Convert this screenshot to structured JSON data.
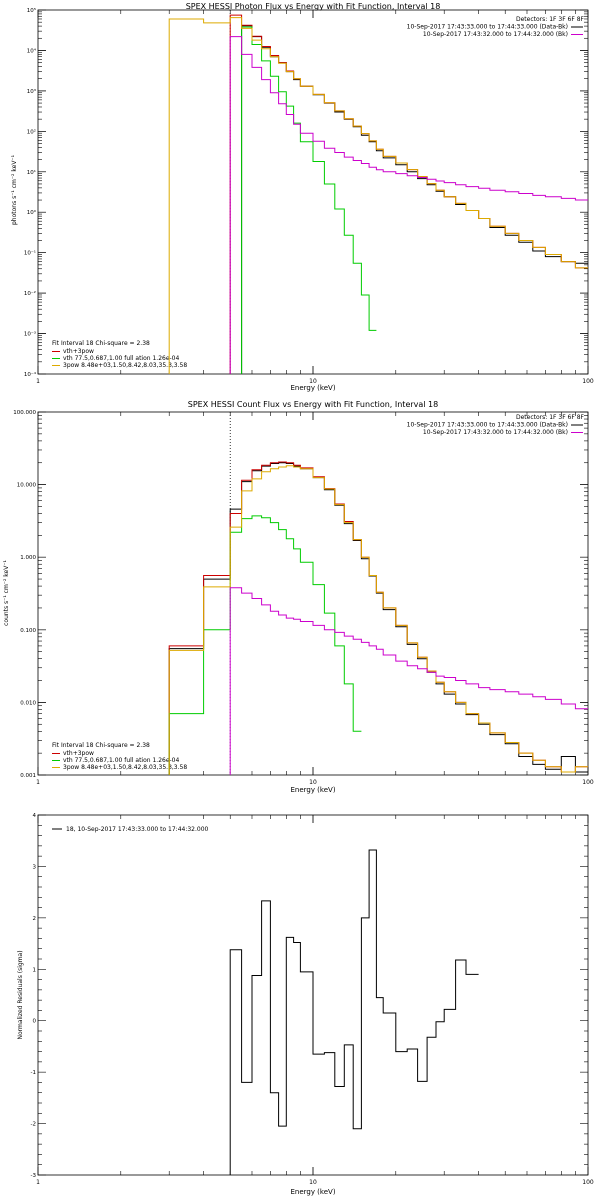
{
  "colors": {
    "data": "#000000",
    "model_total": "#cc0000",
    "vth": "#00cc00",
    "3pow": "#ddaa00",
    "background": "#cc00cc",
    "axes": "#000000"
  },
  "chart_data": [
    {
      "type": "line",
      "scale": "log-log",
      "title": "SPEX HESSI Photon Flux vs Energy with Fit Function, Interval 18",
      "xlabel": "Energy (keV)",
      "ylabel": "photons s⁻¹ cm⁻² keV⁻¹",
      "xlim": [
        1,
        100
      ],
      "ylim": [
        0.0001,
        100000
      ],
      "x_ticks": [
        {
          "v": 1,
          "label": "1"
        },
        {
          "v": 10,
          "label": "10"
        },
        {
          "v": 100,
          "label": "100"
        }
      ],
      "y_ticks": [
        {
          "v": 100000,
          "label": "10⁵"
        },
        {
          "v": 10000,
          "label": "10⁴"
        },
        {
          "v": 1000,
          "label": "10³"
        },
        {
          "v": 100,
          "label": "10²"
        },
        {
          "v": 10,
          "label": "10¹"
        },
        {
          "v": 1,
          "label": "10⁰"
        },
        {
          "v": 0.1,
          "label": "10⁻¹"
        },
        {
          "v": 0.01,
          "label": "10⁻²"
        },
        {
          "v": 0.001,
          "label": "10⁻³"
        },
        {
          "v": 0.0001,
          "label": "10⁻⁴"
        }
      ],
      "vline_x": 5.0,
      "header": {
        "detectors": "Detectors: 1F 3F 6F 8F",
        "legend": [
          {
            "text": "10-Sep-2017 17:43:33.000 to 17:44:33.000 (Data-Bk)",
            "color_key": "data"
          },
          {
            "text": "10-Sep-2017 17:43:32.000 to 17:44:32.000 (Bk)",
            "color_key": "background"
          }
        ]
      },
      "fit_legend": {
        "title": "Fit Interval 18   Chi-square = 2.38",
        "items": [
          {
            "text": "vth+3pow",
            "color_key": "model_total"
          },
          {
            "text": "vth 77.5,0.687,1.00   full ation 1.26e-04",
            "color_key": "vth"
          },
          {
            "text": "3pow 8.48e+03,1.50,8.42,8.03,35.3,3.58",
            "color_key": "3pow"
          }
        ]
      },
      "edges": [
        3,
        4,
        5,
        5.5,
        6,
        6.5,
        7,
        7.5,
        8,
        8.5,
        9,
        10,
        11,
        12,
        13,
        14,
        15,
        16,
        17,
        18,
        20,
        22,
        24,
        26,
        28,
        30,
        33,
        36,
        40,
        44,
        50,
        56,
        63,
        70,
        80,
        90,
        100
      ],
      "series": [
        {
          "name": "Data-Bk",
          "color_key": "data",
          "start_index": 3,
          "values": [
            41000,
            22000,
            12000,
            7000,
            5000,
            3000,
            1900,
            1300,
            800,
            500,
            300,
            200,
            130,
            80,
            55,
            33,
            22,
            15,
            10,
            6.8,
            4.8,
            3.3,
            2.4,
            1.55,
            1.1,
            0.7,
            0.42,
            0.27,
            0.18,
            0.11,
            0.08,
            0.06,
            0.055
          ]
        },
        {
          "name": "vth+3pow",
          "color_key": "model_total",
          "start_index": 2,
          "values": [
            75000,
            42000,
            22500,
            12500,
            7500,
            5000,
            3100,
            2000,
            1300,
            820,
            510,
            320,
            205,
            135,
            88,
            58,
            36,
            24,
            16.5,
            11.3,
            7.6,
            5.1,
            3.5,
            2.4,
            1.65,
            1.1,
            0.7,
            0.45,
            0.3,
            0.2,
            0.135,
            0.09,
            0.06,
            0.042
          ]
        },
        {
          "name": "vth",
          "color_key": "vth",
          "start_index": 3,
          "values": [
            38000,
            14000,
            5500,
            2300,
            950,
            420,
            160,
            55,
            18,
            5,
            1.2,
            0.27,
            0.055,
            0.009,
            0.0012
          ]
        },
        {
          "name": "3pow",
          "color_key": "3pow",
          "start_index": 0,
          "values": [
            60000,
            48000,
            65000,
            35000,
            18000,
            11000,
            7000,
            4800,
            3000,
            2000,
            1300,
            820,
            510,
            320,
            205,
            135,
            88,
            58,
            36,
            24,
            16.5,
            11.3,
            7.6,
            5.1,
            3.5,
            2.4,
            1.65,
            1.1,
            0.7,
            0.45,
            0.3,
            0.2,
            0.135,
            0.09,
            0.06,
            0.042
          ]
        },
        {
          "name": "Bk",
          "color_key": "background",
          "start_index": 2,
          "values": [
            22000,
            8000,
            3800,
            1900,
            900,
            480,
            260,
            150,
            90,
            57,
            38,
            30,
            23,
            19,
            16,
            13,
            11.2,
            10,
            9,
            8,
            7.2,
            6.5,
            5.9,
            5.4,
            4.8,
            4.3,
            3.9,
            3.5,
            3.2,
            2.9,
            2.6,
            2.4,
            2.2,
            2.0
          ]
        }
      ]
    },
    {
      "type": "line",
      "scale": "log-log",
      "title": "SPEX HESSI Count Flux vs Energy with Fit Function, Interval 18",
      "xlabel": "Energy (keV)",
      "ylabel": "counts s⁻¹ cm⁻² keV⁻¹",
      "xlim": [
        1,
        100
      ],
      "ylim": [
        0.001,
        100
      ],
      "x_ticks": [
        {
          "v": 1,
          "label": "1"
        },
        {
          "v": 10,
          "label": "10"
        },
        {
          "v": 100,
          "label": "100"
        }
      ],
      "y_ticks": [
        {
          "v": 100,
          "label": "100.000"
        },
        {
          "v": 10,
          "label": "10.000"
        },
        {
          "v": 1,
          "label": "1.000"
        },
        {
          "v": 0.1,
          "label": "0.100"
        },
        {
          "v": 0.01,
          "label": "0.010"
        },
        {
          "v": 0.001,
          "label": "0.001"
        }
      ],
      "vline_x": 5.0,
      "header": {
        "detectors": "Detectors: 1F 3F 6F 8F",
        "legend": [
          {
            "text": "10-Sep-2017 17:43:33.000 to 17:44:33.000 (Data-Bk)",
            "color_key": "data"
          },
          {
            "text": "10-Sep-2017 17:43:32.000 to 17:44:32.000 (Bk)",
            "color_key": "background"
          }
        ]
      },
      "fit_legend": {
        "title": "Fit Interval 18   Chi-square = 2.38",
        "items": [
          {
            "text": "vth+3pow",
            "color_key": "model_total"
          },
          {
            "text": "vth 77.5,0.687,1.00   full ation 1.26e-04",
            "color_key": "vth"
          },
          {
            "text": "3pow 8.48e+03,1.50,8.42,8.03,35.3,3.58",
            "color_key": "3pow"
          }
        ]
      },
      "edges": [
        3,
        4,
        5,
        5.5,
        6,
        6.5,
        7,
        7.5,
        8,
        8.5,
        9,
        10,
        11,
        12,
        13,
        14,
        15,
        16,
        17,
        18,
        20,
        22,
        24,
        26,
        28,
        30,
        33,
        36,
        40,
        44,
        50,
        56,
        63,
        70,
        80,
        90,
        100
      ],
      "series": [
        {
          "name": "Data-Bk",
          "color_key": "data",
          "start_index": 0,
          "values": [
            0.055,
            0.5,
            4.6,
            11,
            15.5,
            18,
            19.5,
            20,
            19.5,
            18,
            16.5,
            12.5,
            8.5,
            5.2,
            2.9,
            1.7,
            0.95,
            0.55,
            0.32,
            0.19,
            0.11,
            0.063,
            0.04,
            0.026,
            0.018,
            0.013,
            0.0095,
            0.0068,
            0.005,
            0.0036,
            0.0027,
            0.0018,
            0.0014,
            0.0012,
            0.0018,
            0.0011
          ]
        },
        {
          "name": "vth+3pow",
          "color_key": "model_total",
          "start_index": 0,
          "values": [
            0.06,
            0.56,
            4.0,
            11.5,
            16,
            18.5,
            20,
            20.5,
            20,
            18.5,
            17,
            12.8,
            8.8,
            5.4,
            3.1,
            1.75,
            1.0,
            0.56,
            0.33,
            0.2,
            0.115,
            0.066,
            0.042,
            0.027,
            0.019,
            0.014,
            0.01,
            0.007,
            0.0052,
            0.0038,
            0.0028,
            0.002,
            0.0016,
            0.0013,
            0.0011,
            0.0013
          ]
        },
        {
          "name": "vth",
          "color_key": "vth",
          "start_index": 0,
          "values": [
            0.007,
            0.1,
            2.2,
            3.4,
            3.7,
            3.5,
            3.0,
            2.4,
            1.8,
            1.3,
            0.85,
            0.42,
            0.17,
            0.06,
            0.018,
            0.004
          ]
        },
        {
          "name": "3pow",
          "color_key": "3pow",
          "start_index": 0,
          "values": [
            0.052,
            0.39,
            2.6,
            8.2,
            12,
            15,
            16.5,
            17.5,
            18.2,
            17.5,
            16.5,
            12.5,
            8.7,
            5.3,
            3.0,
            1.75,
            1.0,
            0.56,
            0.33,
            0.2,
            0.115,
            0.066,
            0.042,
            0.027,
            0.019,
            0.014,
            0.01,
            0.007,
            0.0052,
            0.0038,
            0.0028,
            0.002,
            0.0016,
            0.0013,
            0.0011,
            0.0013
          ]
        },
        {
          "name": "Bk",
          "color_key": "background",
          "start_index": 2,
          "values": [
            0.38,
            0.32,
            0.27,
            0.22,
            0.18,
            0.16,
            0.145,
            0.14,
            0.13,
            0.115,
            0.1,
            0.092,
            0.082,
            0.074,
            0.067,
            0.06,
            0.054,
            0.045,
            0.037,
            0.032,
            0.029,
            0.026,
            0.023,
            0.022,
            0.02,
            0.018,
            0.016,
            0.015,
            0.014,
            0.013,
            0.012,
            0.011,
            0.0095,
            0.0082
          ]
        }
      ]
    },
    {
      "type": "line",
      "scale": "log-x",
      "title": "",
      "xlabel": "Energy (keV)",
      "ylabel": "Normalized Residuals (sigma)",
      "xlim": [
        1,
        100
      ],
      "ylim": [
        -3,
        4
      ],
      "x_ticks": [
        {
          "v": 1,
          "label": "1"
        },
        {
          "v": 10,
          "label": "10"
        },
        {
          "v": 100,
          "label": "100"
        }
      ],
      "y_ticks": [
        {
          "v": 4,
          "label": "4"
        },
        {
          "v": 3,
          "label": "3"
        },
        {
          "v": 2,
          "label": "2"
        },
        {
          "v": 1,
          "label": "1"
        },
        {
          "v": 0,
          "label": "0"
        },
        {
          "v": -1,
          "label": "-1"
        },
        {
          "v": -2,
          "label": "-2"
        },
        {
          "v": -3,
          "label": "-3"
        }
      ],
      "legend": [
        {
          "text": "18, 10-Sep-2017 17:43:33.000 to 17:44:32.000",
          "color_key": "data"
        }
      ],
      "edges": [
        5,
        5.5,
        6,
        6.5,
        7,
        7.5,
        8,
        8.5,
        9,
        10,
        11,
        12,
        13,
        14,
        15,
        16,
        17,
        18,
        20,
        22,
        24,
        26,
        28,
        30,
        33,
        36,
        40,
        44,
        50,
        56,
        63,
        70,
        80,
        90,
        100
      ],
      "series": [
        {
          "name": "residuals",
          "color_key": "data",
          "start_index": 0,
          "values": [
            1.38,
            -1.2,
            0.88,
            2.33,
            -1.4,
            -2.05,
            1.62,
            1.52,
            0.95,
            -0.65,
            -0.62,
            -1.28,
            -0.47,
            -2.1,
            2.0,
            3.32,
            0.45,
            0.15,
            -0.6,
            -0.55,
            -1.18,
            -0.32,
            -0.02,
            0.22,
            1.18,
            0.9
          ]
        }
      ],
      "start_drop_to": -3
    }
  ]
}
